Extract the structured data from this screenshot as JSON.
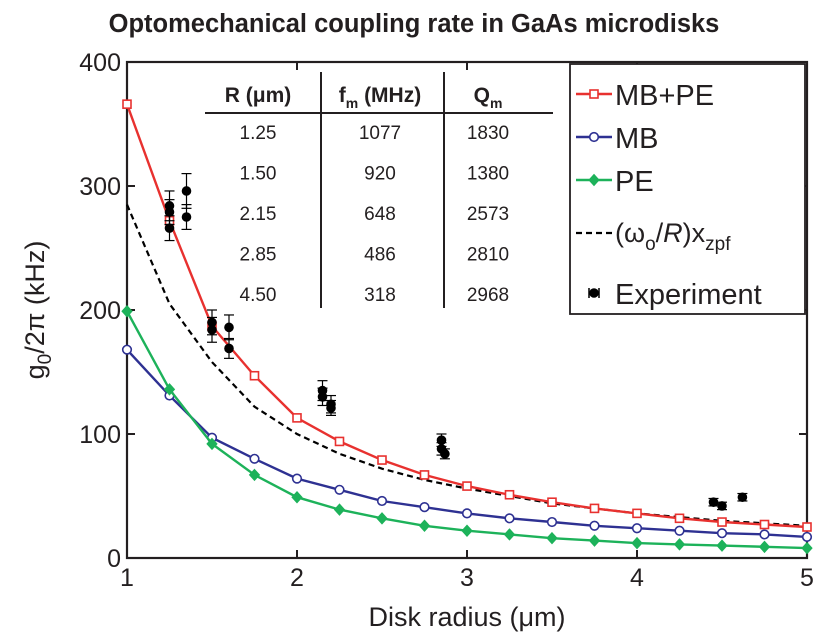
{
  "chart_data": {
    "type": "line",
    "title": "Optomechanical coupling rate in GaAs microdisks",
    "xlabel": "Disk radius (μm)",
    "ylabel_main": "g",
    "ylabel_sub": "0",
    "ylabel_rest": "/2π (kHz)",
    "xlim": [
      1,
      5
    ],
    "ylim": [
      0,
      400
    ],
    "xticks": [
      "1",
      "2",
      "3",
      "4",
      "5"
    ],
    "yticks": [
      "0",
      "100",
      "200",
      "300",
      "400"
    ],
    "x": [
      1.0,
      1.25,
      1.5,
      1.75,
      2.0,
      2.25,
      2.5,
      2.75,
      3.0,
      3.25,
      3.5,
      3.75,
      4.0,
      4.25,
      4.5,
      4.75,
      5.0
    ],
    "series": [
      {
        "name": "MB+PE",
        "color": "#e8312f",
        "marker": "square",
        "values": [
          366,
          272,
          187,
          147,
          113,
          94,
          79,
          67,
          58,
          51,
          45,
          40,
          36,
          32,
          29,
          27,
          25
        ]
      },
      {
        "name": "MB",
        "color": "#2e3192",
        "marker": "circle",
        "values": [
          168,
          131,
          97,
          80,
          64,
          55,
          46,
          41,
          36,
          32,
          29,
          26,
          24,
          22,
          20,
          19,
          17
        ]
      },
      {
        "name": "PE",
        "color": "#1db25a",
        "marker": "diamond",
        "values": [
          199,
          136,
          92,
          67,
          49,
          39,
          32,
          26,
          22,
          19,
          16,
          14,
          12,
          11,
          10,
          9,
          8
        ]
      },
      {
        "name": "(ωo/R)xzpf",
        "color": "#000000",
        "marker": "none",
        "dashed": true,
        "values": [
          285,
          205,
          158,
          122,
          100,
          84,
          72,
          63,
          56,
          50,
          44,
          40,
          36,
          33,
          30,
          28,
          26
        ]
      }
    ],
    "experiment": {
      "name": "Experiment",
      "color": "#000000",
      "points": [
        {
          "x": 1.25,
          "y": 284,
          "err": 12
        },
        {
          "x": 1.25,
          "y": 279,
          "err": 10
        },
        {
          "x": 1.25,
          "y": 266,
          "err": 10
        },
        {
          "x": 1.35,
          "y": 296,
          "err": 14
        },
        {
          "x": 1.35,
          "y": 275,
          "err": 10
        },
        {
          "x": 1.5,
          "y": 190,
          "err": 10
        },
        {
          "x": 1.5,
          "y": 184,
          "err": 10
        },
        {
          "x": 1.6,
          "y": 186,
          "err": 10
        },
        {
          "x": 1.6,
          "y": 169,
          "err": 8
        },
        {
          "x": 2.15,
          "y": 135,
          "err": 8
        },
        {
          "x": 2.15,
          "y": 130,
          "err": 7
        },
        {
          "x": 2.2,
          "y": 124,
          "err": 7
        },
        {
          "x": 2.2,
          "y": 121,
          "err": 6
        },
        {
          "x": 2.85,
          "y": 95,
          "err": 5
        },
        {
          "x": 2.85,
          "y": 88,
          "err": 5
        },
        {
          "x": 2.87,
          "y": 84,
          "err": 4
        },
        {
          "x": 4.45,
          "y": 45,
          "err": 3
        },
        {
          "x": 4.5,
          "y": 42,
          "err": 3
        },
        {
          "x": 4.62,
          "y": 49,
          "err": 3
        }
      ]
    },
    "legend": {
      "position": "top-right",
      "entries": [
        "MB+PE",
        "MB",
        "PE",
        "(ωo/R)xzpf",
        "Experiment"
      ]
    },
    "legend_dashed_label": {
      "main": "(ω",
      "sub1": "o",
      "mid": "/",
      "italic": "R",
      "end": ")x",
      "sub2": "zpf"
    },
    "inset_table": {
      "headers": [
        {
          "main": "R (μm)",
          "sub": ""
        },
        {
          "main": "f",
          "sub": "m",
          "rest": " (MHz)"
        },
        {
          "main": "Q",
          "sub": "m",
          "rest": ""
        }
      ],
      "rows": [
        [
          "1.25",
          "1077",
          "1830"
        ],
        [
          "1.50",
          "920",
          "1380"
        ],
        [
          "2.15",
          "648",
          "2573"
        ],
        [
          "2.85",
          "486",
          "2810"
        ],
        [
          "4.50",
          "318",
          "2968"
        ]
      ]
    }
  }
}
